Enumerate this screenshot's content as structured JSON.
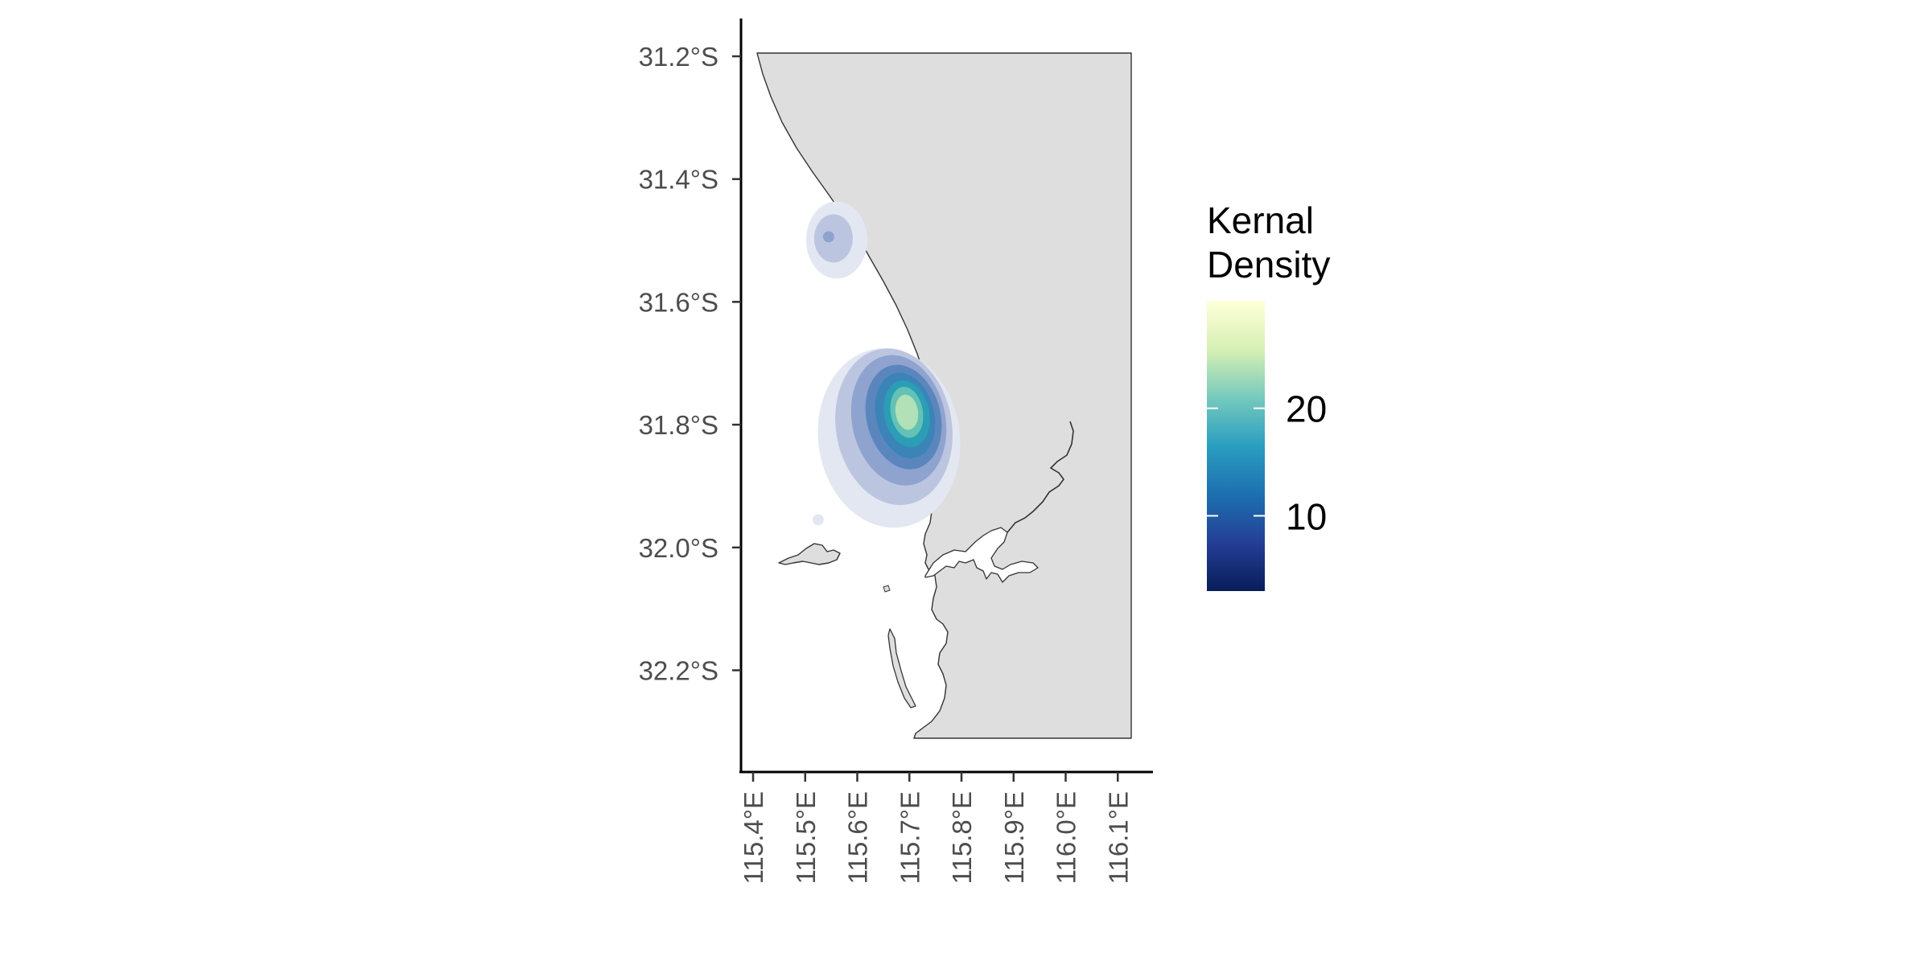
{
  "map": {
    "y_axis": {
      "ticks": [
        {
          "lat": -31.2,
          "label": "31.2°S"
        },
        {
          "lat": -31.4,
          "label": "31.4°S"
        },
        {
          "lat": -31.6,
          "label": "31.6°S"
        },
        {
          "lat": -31.8,
          "label": "31.8°S"
        },
        {
          "lat": -32.0,
          "label": "32.0°S"
        },
        {
          "lat": -32.2,
          "label": "32.2°S"
        }
      ]
    },
    "x_axis": {
      "ticks": [
        {
          "lon": 115.4,
          "label": "115.4°E"
        },
        {
          "lon": 115.5,
          "label": "115.5°E"
        },
        {
          "lon": 115.6,
          "label": "115.6°E"
        },
        {
          "lon": 115.7,
          "label": "115.7°E"
        },
        {
          "lon": 115.8,
          "label": "115.8°E"
        },
        {
          "lon": 115.9,
          "label": "115.9°E"
        },
        {
          "lon": 116.0,
          "label": "116.0°E"
        },
        {
          "lon": 116.1,
          "label": "116.1°E"
        }
      ]
    },
    "land_color": "#dedede",
    "coast_color": "#333333",
    "hotspots": [
      {
        "lon": 115.545,
        "lat": -31.494,
        "peak_level": 3
      },
      {
        "lon": 115.695,
        "lat": -31.785,
        "peak_level": 7
      },
      {
        "lon": 115.525,
        "lat": -31.955,
        "peak_level": 1
      }
    ],
    "density_levels": [
      "#e3e7f1",
      "#bcc5e0",
      "#8fa3cf",
      "#5a86bd",
      "#3a84b7",
      "#2b9db5",
      "#63c2b4",
      "#b2e1b7",
      "#fffbd0"
    ],
    "legend": {
      "title_line1": "Kernal",
      "title_line2": "Density",
      "min": 3,
      "max": 30,
      "ticks": [
        {
          "value": 10,
          "label": "10"
        },
        {
          "value": 20,
          "label": "20"
        }
      ],
      "colors": [
        "#ffffd9",
        "#d6efb3",
        "#73c8bd",
        "#2a9ec1",
        "#1d6fb0",
        "#243d94",
        "#081d58"
      ]
    }
  }
}
